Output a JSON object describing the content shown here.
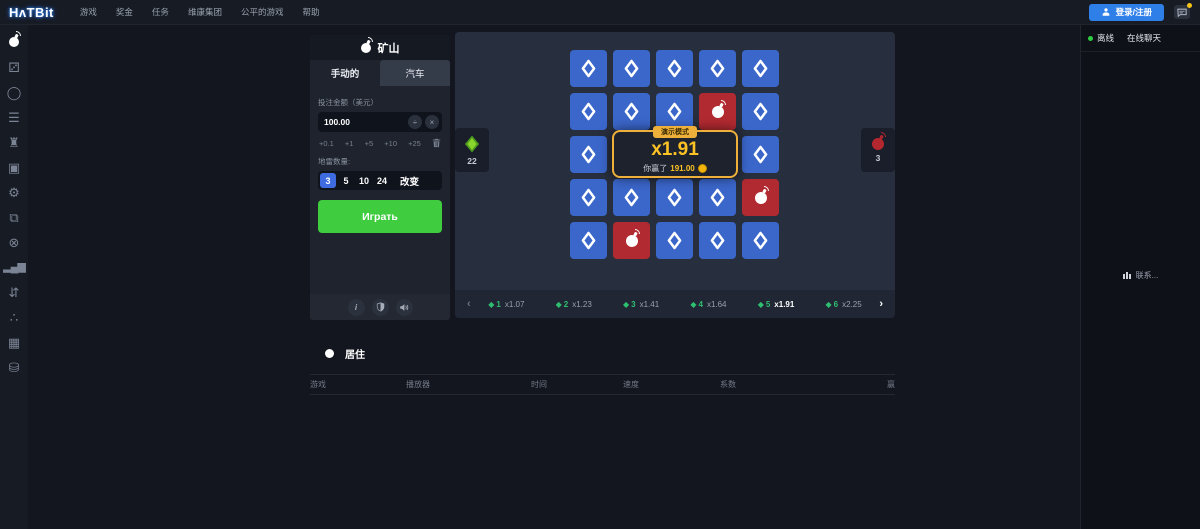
{
  "topbar": {
    "logo": "HᴧTBit",
    "nav": [
      "游戏",
      "奖金",
      "任务",
      "维康集团",
      "公平的游戏",
      "帮助"
    ],
    "login_label": "登录/注册"
  },
  "sidebar": {
    "items": [
      {
        "name": "mines",
        "glyph": "bomb",
        "active": true
      },
      {
        "name": "dice",
        "glyph": "⚂"
      },
      {
        "name": "wheel",
        "glyph": "◯"
      },
      {
        "name": "burger",
        "glyph": "☰"
      },
      {
        "name": "tower",
        "glyph": "♜"
      },
      {
        "name": "slots",
        "glyph": "▣"
      },
      {
        "name": "gear",
        "glyph": "⚙"
      },
      {
        "name": "cards",
        "glyph": "⧉"
      },
      {
        "name": "roulette",
        "glyph": "⊗"
      },
      {
        "name": "trading",
        "glyph": "▂▄▆",
        "small": true
      },
      {
        "name": "hilo",
        "glyph": "⇵"
      },
      {
        "name": "plinko",
        "glyph": "∴"
      },
      {
        "name": "chest",
        "glyph": "▦"
      },
      {
        "name": "coins",
        "glyph": "⛁"
      }
    ]
  },
  "game": {
    "title": "矿山",
    "tabs": {
      "manual": "手动的",
      "auto": "汽车"
    },
    "bet": {
      "label": "投注金额（美元）",
      "value": "100.00",
      "half_symbol": "÷",
      "double_symbol": "×",
      "quick": [
        "+0.1",
        "+1",
        "+5",
        "+10",
        "+25"
      ]
    },
    "mines": {
      "label": "地雷数量:",
      "options": [
        "3",
        "5",
        "10",
        "24"
      ],
      "selected": "3",
      "change_label": "改变"
    },
    "play_label": "Играть"
  },
  "board": {
    "grid": [
      "ddddd",
      "dddbd",
      "ddddd",
      "ddddb",
      "dbddd"
    ],
    "diamonds_left": "22",
    "bombs_left": "3",
    "overlay": {
      "badge": "演示模式",
      "multiplier": "x1.91",
      "win_prefix": "你赢了",
      "win_amount": "191.00"
    },
    "multipliers": [
      {
        "n": "1",
        "x": "x1.07",
        "active": false
      },
      {
        "n": "2",
        "x": "x1.23",
        "active": false
      },
      {
        "n": "3",
        "x": "x1.41",
        "active": false
      },
      {
        "n": "4",
        "x": "x1.64",
        "active": false
      },
      {
        "n": "5",
        "x": "x1.91",
        "active": true
      },
      {
        "n": "6",
        "x": "x2.25",
        "active": false
      }
    ],
    "prev_symbol": "‹",
    "next_symbol": "›"
  },
  "bets": {
    "title": "居住",
    "columns": [
      "游戏",
      "播放器",
      "时间",
      "速度",
      "系数",
      "赢"
    ]
  },
  "chat": {
    "status": "离线",
    "tab": "在线聊天",
    "contact": "联系..."
  },
  "colors": {
    "accent_blue": "#3b67cb",
    "accent_red": "#b22a31",
    "accent_green": "#3fcc3f",
    "diamond_green": "#76c32a",
    "teal_green": "#2fbf71",
    "gold": "#eeb03a",
    "login_blue": "#2f7fe8"
  }
}
